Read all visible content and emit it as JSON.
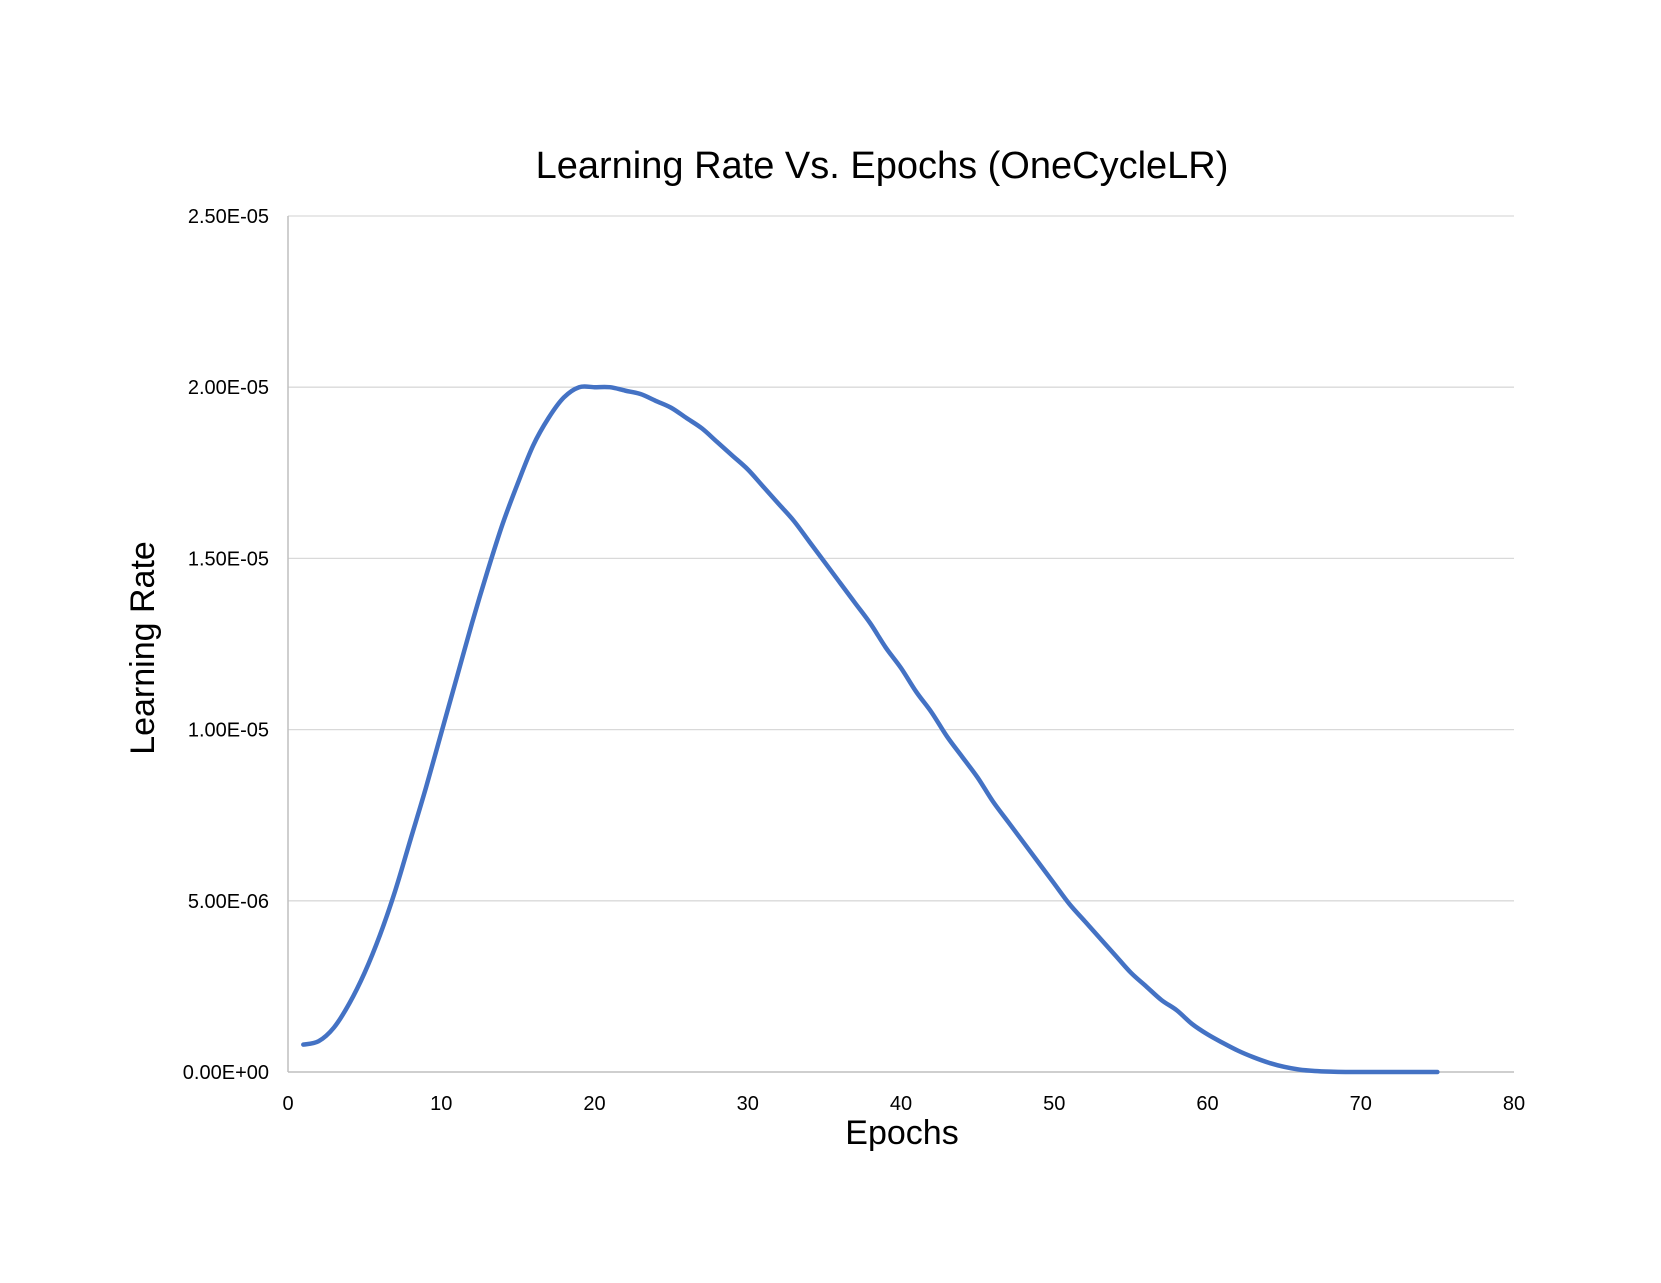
{
  "chart_data": {
    "type": "line",
    "title": "Learning Rate Vs. Epochs (OneCycleLR)",
    "xlabel": "Epochs",
    "ylabel": "Learning Rate",
    "xlim": [
      0,
      80
    ],
    "ylim": [
      0,
      2.5e-05
    ],
    "x_ticks": [
      "0",
      "10",
      "20",
      "30",
      "40",
      "50",
      "60",
      "70",
      "80"
    ],
    "y_ticks": [
      "0.00E+00",
      "5.00E-06",
      "1.00E-05",
      "1.50E-05",
      "2.00E-05",
      "2.50E-05"
    ],
    "grid": true,
    "legend": "none",
    "colors": {
      "series": "#4472c4",
      "grid": "#d9d9d9",
      "axis": "#bfbfbf"
    },
    "series": [
      {
        "x": [
          1,
          2,
          3,
          4,
          5,
          6,
          7,
          8,
          9,
          10,
          11,
          12,
          13,
          14,
          15,
          16,
          17,
          18,
          19,
          20,
          21,
          22,
          23,
          24,
          25,
          26,
          27,
          28,
          29,
          30,
          31,
          32,
          33,
          34,
          35,
          36,
          37,
          38,
          39,
          40,
          41,
          42,
          43,
          44,
          45,
          46,
          47,
          48,
          49,
          50,
          51,
          52,
          53,
          54,
          55,
          56,
          57,
          58,
          59,
          60,
          61,
          62,
          63,
          64,
          65,
          66,
          67,
          68,
          69,
          70,
          71,
          72,
          73,
          74,
          75
        ],
        "y": [
          8e-07,
          9e-07,
          1.3e-06,
          2e-06,
          2.9e-06,
          4e-06,
          5.3e-06,
          6.8e-06,
          8.3e-06,
          9.9e-06,
          1.15e-05,
          1.31e-05,
          1.46e-05,
          1.6e-05,
          1.72e-05,
          1.83e-05,
          1.91e-05,
          1.97e-05,
          2e-05,
          2e-05,
          2e-05,
          1.99e-05,
          1.98e-05,
          1.96e-05,
          1.94e-05,
          1.91e-05,
          1.88e-05,
          1.84e-05,
          1.8e-05,
          1.76e-05,
          1.71e-05,
          1.66e-05,
          1.61e-05,
          1.55e-05,
          1.49e-05,
          1.43e-05,
          1.37e-05,
          1.31e-05,
          1.24e-05,
          1.18e-05,
          1.11e-05,
          1.05e-05,
          9.8e-06,
          9.2e-06,
          8.6e-06,
          7.9e-06,
          7.3e-06,
          6.7e-06,
          6.1e-06,
          5.5e-06,
          4.9e-06,
          4.4e-06,
          3.9e-06,
          3.4e-06,
          2.9e-06,
          2.5e-06,
          2.1e-06,
          1.8e-06,
          1.4e-06,
          1.1e-06,
          8.5e-07,
          6.2e-07,
          4.3e-07,
          2.7e-07,
          1.5e-07,
          7e-08,
          3e-08,
          1e-08,
          0,
          0,
          0,
          0,
          0,
          0,
          0
        ]
      }
    ]
  }
}
